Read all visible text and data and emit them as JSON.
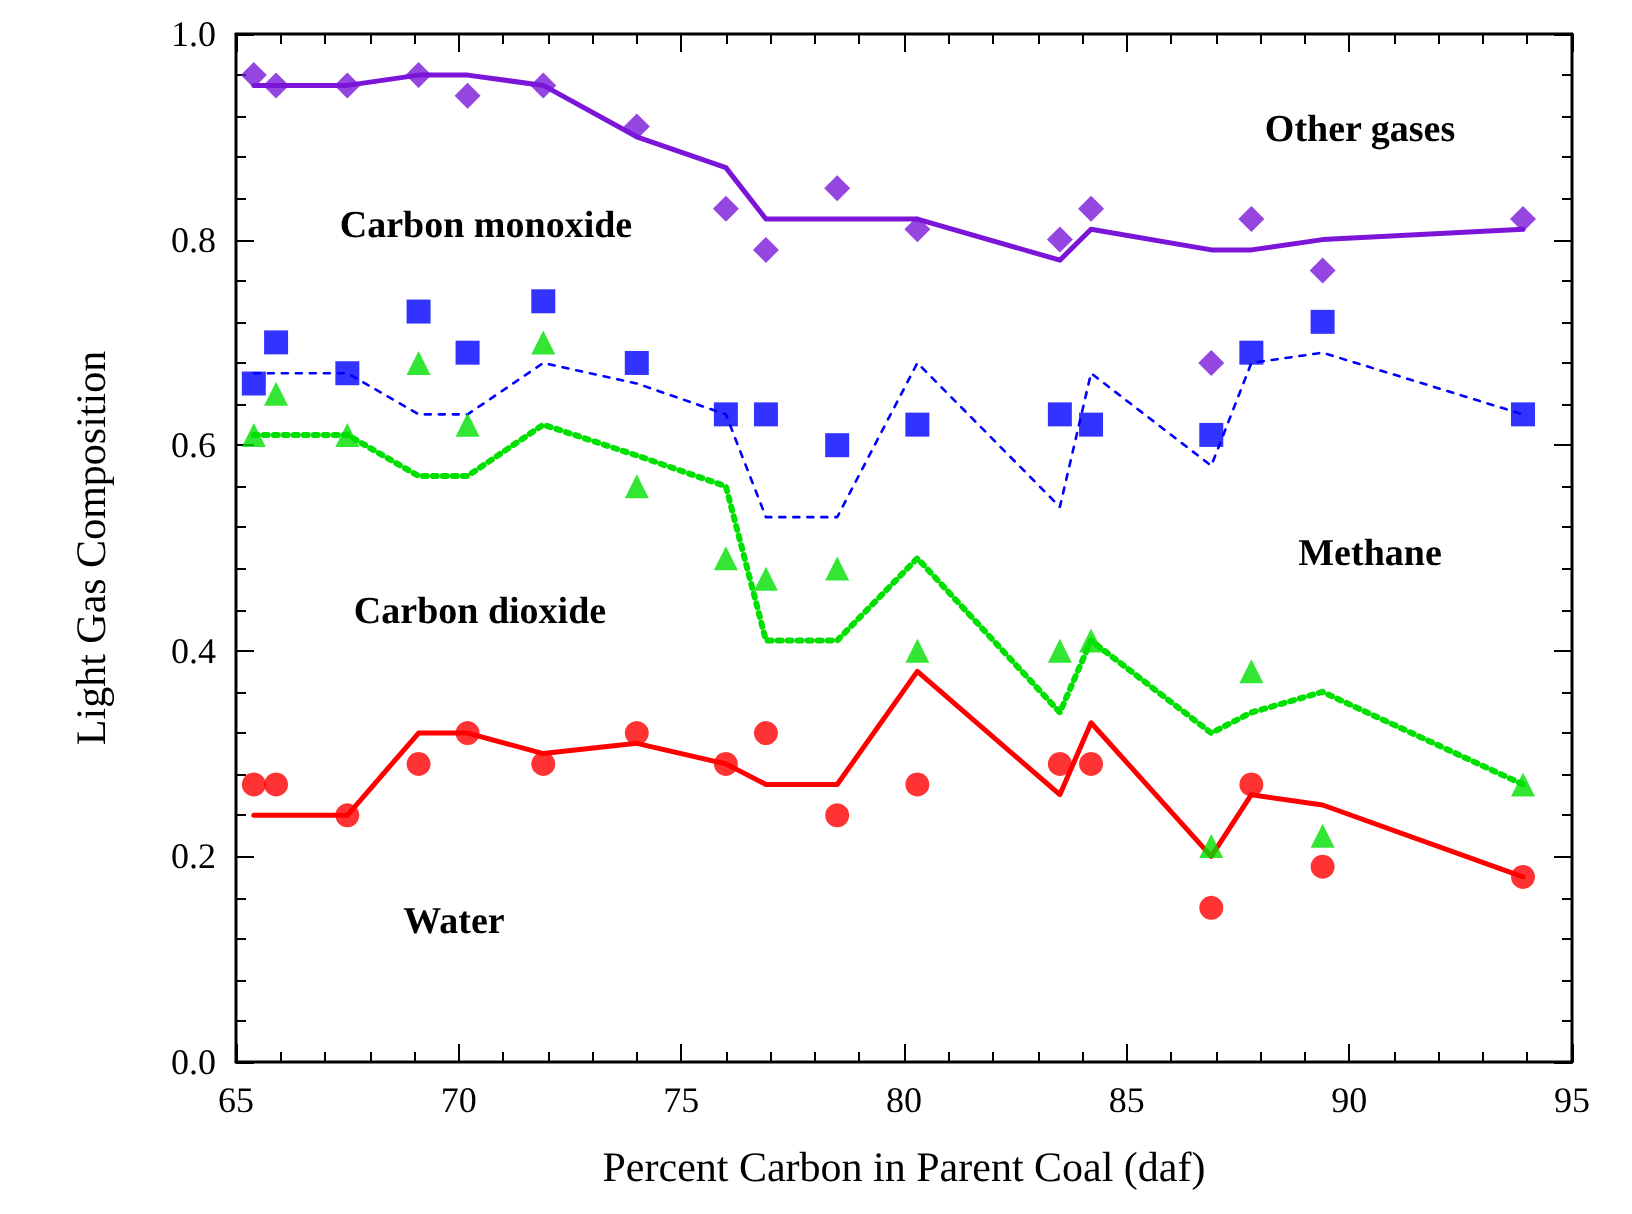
{
  "chart_data": {
    "type": "scatter",
    "xlabel": "Percent Carbon in Parent Coal (daf)",
    "ylabel": "Light Gas Composition",
    "xlim": [
      65,
      95
    ],
    "xticks": [
      65,
      70,
      75,
      80,
      85,
      90,
      95
    ],
    "ylim": [
      0,
      1
    ],
    "yticks": [
      {
        "value": 0,
        "label": "0.0"
      },
      {
        "value": 0.2,
        "label": "0.2"
      },
      {
        "value": 0.4,
        "label": "0.4"
      },
      {
        "value": 0.6,
        "label": "0.6"
      },
      {
        "value": 0.8,
        "label": "0.8"
      },
      {
        "value": 1,
        "label": "1.0"
      }
    ],
    "grid": false,
    "x": [
      65.4,
      65.9,
      67.5,
      69.1,
      70.2,
      71.9,
      74.0,
      76.0,
      76.9,
      78.5,
      80.3,
      83.5,
      84.2,
      86.9,
      87.8,
      89.4,
      93.9
    ],
    "series": [
      {
        "marker": "diamond",
        "color": "#7b16d8",
        "values": [
          0.96,
          0.95,
          0.95,
          0.96,
          0.94,
          0.95,
          0.91,
          0.83,
          0.79,
          0.85,
          0.81,
          0.8,
          0.83,
          0.68,
          0.82,
          0.77,
          0.82
        ]
      },
      {
        "marker": "square",
        "color": "#0000ff",
        "values": [
          0.66,
          0.7,
          0.67,
          0.73,
          0.69,
          0.74,
          0.68,
          0.63,
          0.63,
          0.6,
          0.62,
          0.63,
          0.62,
          0.61,
          0.69,
          0.72,
          0.63
        ]
      },
      {
        "marker": "triangle",
        "color": "#00e000",
        "values": [
          0.61,
          0.65,
          0.61,
          0.68,
          0.62,
          0.7,
          0.56,
          0.49,
          0.47,
          0.48,
          0.4,
          0.4,
          0.41,
          0.21,
          0.38,
          0.22,
          0.27
        ]
      },
      {
        "marker": "circle",
        "color": "#ff0000",
        "values": [
          0.27,
          0.27,
          0.24,
          0.29,
          0.32,
          0.29,
          0.32,
          0.29,
          0.32,
          0.24,
          0.27,
          0.29,
          0.29,
          0.15,
          0.27,
          0.19,
          0.18
        ]
      },
      {
        "type": "line",
        "line_style": "solid",
        "color": "#7b16d8",
        "x": [
          65.4,
          67.5,
          69.1,
          70.2,
          71.9,
          74.0,
          76.0,
          76.9,
          78.5,
          80.3,
          83.5,
          84.2,
          86.9,
          87.8,
          89.4,
          93.9
        ],
        "values": [
          0.95,
          0.95,
          0.96,
          0.96,
          0.95,
          0.9,
          0.87,
          0.82,
          0.82,
          0.82,
          0.78,
          0.81,
          0.79,
          0.79,
          0.8,
          0.81
        ]
      },
      {
        "type": "line",
        "line_style": "dashed",
        "color": "#0000ff",
        "x": [
          65.4,
          67.5,
          69.1,
          70.2,
          71.9,
          74.0,
          76.0,
          76.9,
          78.5,
          80.3,
          83.5,
          84.2,
          86.9,
          87.8,
          89.4,
          93.9
        ],
        "values": [
          0.67,
          0.67,
          0.63,
          0.63,
          0.68,
          0.66,
          0.63,
          0.53,
          0.53,
          0.68,
          0.54,
          0.67,
          0.58,
          0.68,
          0.69,
          0.63
        ]
      },
      {
        "type": "line",
        "line_style": "dotted",
        "color": "#00e000",
        "x": [
          65.4,
          67.5,
          69.1,
          70.2,
          71.9,
          74.0,
          76.0,
          76.9,
          78.5,
          80.3,
          83.5,
          84.2,
          86.9,
          87.8,
          89.4,
          93.9
        ],
        "values": [
          0.61,
          0.61,
          0.57,
          0.57,
          0.62,
          0.59,
          0.56,
          0.41,
          0.41,
          0.49,
          0.34,
          0.41,
          0.32,
          0.34,
          0.36,
          0.27
        ]
      },
      {
        "type": "line",
        "line_style": "solid",
        "color": "#ff0000",
        "x": [
          65.4,
          67.5,
          69.1,
          70.2,
          71.9,
          74.0,
          76.0,
          76.9,
          78.5,
          80.3,
          83.5,
          84.2,
          86.9,
          87.8,
          89.4,
          93.9
        ],
        "values": [
          0.24,
          0.24,
          0.32,
          0.32,
          0.3,
          0.31,
          0.29,
          0.27,
          0.27,
          0.38,
          0.26,
          0.33,
          0.2,
          0.26,
          0.25,
          0.18
        ]
      }
    ],
    "annotations": [
      "Other gases",
      "Carbon monoxide",
      "Methane",
      "Carbon dioxide",
      "Water"
    ]
  }
}
